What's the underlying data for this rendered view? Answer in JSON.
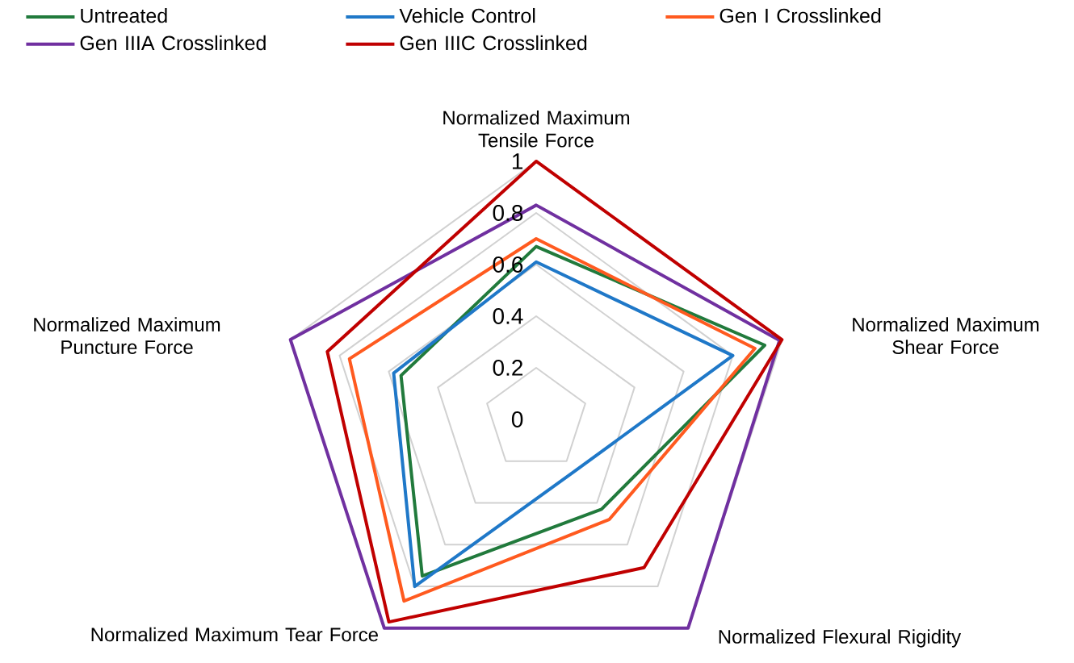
{
  "chart_data": {
    "type": "radar",
    "categories": [
      "Normalized Maximum Tensile Force",
      "Normalized Maximum Shear Force",
      "Normalized Flexural Rigidity",
      "Normalized Maximum Tear Force",
      "Normalized Maximum Puncture Force"
    ],
    "series": [
      {
        "name": "Untreated",
        "color": "#217a3c",
        "values": [
          0.67,
          0.93,
          0.43,
          0.75,
          0.55
        ]
      },
      {
        "name": "Vehicle Control",
        "color": "#1f78c8",
        "values": [
          0.61,
          0.8,
          0.25,
          0.8,
          0.58
        ]
      },
      {
        "name": "Gen I Crosslinked",
        "color": "#ff5a1f",
        "values": [
          0.7,
          0.89,
          0.48,
          0.87,
          0.76
        ]
      },
      {
        "name": "Gen IIIA Crosslinked",
        "color": "#7030a0",
        "values": [
          0.83,
          0.99,
          1.0,
          1.0,
          1.0
        ]
      },
      {
        "name": "Gen IIIC Crosslinked",
        "color": "#c00000",
        "values": [
          1.0,
          1.0,
          0.71,
          0.97,
          0.85
        ]
      }
    ],
    "ylim": [
      0,
      1
    ],
    "yticks": [
      0,
      0.2,
      0.4,
      0.6,
      0.8,
      1
    ],
    "grid": true,
    "legend": "top",
    "line_style": "solid",
    "marker": "none"
  }
}
